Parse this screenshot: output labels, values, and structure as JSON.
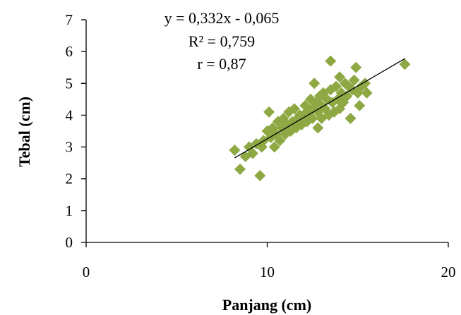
{
  "chart_data": {
    "type": "scatter",
    "xlabel": "Panjang (cm)",
    "ylabel": "Tebal (cm)",
    "xlim": [
      0,
      20
    ],
    "ylim": [
      0,
      7
    ],
    "xticks": [
      "0",
      "10",
      "20"
    ],
    "yticks": [
      "0",
      "1",
      "2",
      "3",
      "4",
      "5",
      "6",
      "7"
    ],
    "grid": false,
    "legend": "none",
    "marker_color": "#8EA843",
    "marker_shape": "diamond",
    "trendline_color": "#000000",
    "annotations": [
      "y = 0,332x - 0,065",
      "R² = 0,759",
      "r = 0,87"
    ],
    "trendline": {
      "slope": 0.332,
      "intercept": -0.065,
      "x_range": [
        8.2,
        17.6
      ]
    },
    "points": [
      [
        8.2,
        2.9
      ],
      [
        8.5,
        2.3
      ],
      [
        8.8,
        2.7
      ],
      [
        9.0,
        3.0
      ],
      [
        9.2,
        2.8
      ],
      [
        9.4,
        3.1
      ],
      [
        9.6,
        2.1
      ],
      [
        9.7,
        3.0
      ],
      [
        9.8,
        3.2
      ],
      [
        10.0,
        3.5
      ],
      [
        10.1,
        4.1
      ],
      [
        10.2,
        3.3
      ],
      [
        10.3,
        3.6
      ],
      [
        10.4,
        3.0
      ],
      [
        10.5,
        3.4
      ],
      [
        10.6,
        3.8
      ],
      [
        10.7,
        3.2
      ],
      [
        10.8,
        3.6
      ],
      [
        10.9,
        3.9
      ],
      [
        11.0,
        3.4
      ],
      [
        11.1,
        3.7
      ],
      [
        11.2,
        4.1
      ],
      [
        11.3,
        3.5
      ],
      [
        11.4,
        3.8
      ],
      [
        11.5,
        4.2
      ],
      [
        11.6,
        3.6
      ],
      [
        11.7,
        3.9
      ],
      [
        11.8,
        4.0
      ],
      [
        11.9,
        3.7
      ],
      [
        12.0,
        4.0
      ],
      [
        12.1,
        4.3
      ],
      [
        12.2,
        3.8
      ],
      [
        12.3,
        4.1
      ],
      [
        12.4,
        4.5
      ],
      [
        12.5,
        3.9
      ],
      [
        12.5,
        4.2
      ],
      [
        12.6,
        5.0
      ],
      [
        12.7,
        4.4
      ],
      [
        12.8,
        3.6
      ],
      [
        12.8,
        4.1
      ],
      [
        12.9,
        4.6
      ],
      [
        13.0,
        4.3
      ],
      [
        13.0,
        3.9
      ],
      [
        13.1,
        4.7
      ],
      [
        13.2,
        4.2
      ],
      [
        13.3,
        4.5
      ],
      [
        13.4,
        4.0
      ],
      [
        13.5,
        5.7
      ],
      [
        13.5,
        4.8
      ],
      [
        13.6,
        4.4
      ],
      [
        13.7,
        4.1
      ],
      [
        13.8,
        4.9
      ],
      [
        13.9,
        4.5
      ],
      [
        14.0,
        5.2
      ],
      [
        14.0,
        4.2
      ],
      [
        14.1,
        4.7
      ],
      [
        14.2,
        4.4
      ],
      [
        14.3,
        5.0
      ],
      [
        14.4,
        4.6
      ],
      [
        14.5,
        4.9
      ],
      [
        14.6,
        3.9
      ],
      [
        14.7,
        4.8
      ],
      [
        14.8,
        5.1
      ],
      [
        14.9,
        5.5
      ],
      [
        15.0,
        4.7
      ],
      [
        15.1,
        4.3
      ],
      [
        15.2,
        4.9
      ],
      [
        15.4,
        5.0
      ],
      [
        15.5,
        4.7
      ],
      [
        17.6,
        5.6
      ]
    ]
  }
}
